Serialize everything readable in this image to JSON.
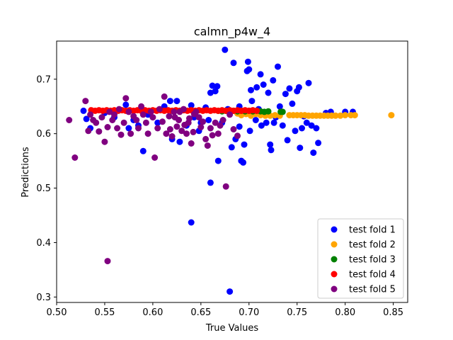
{
  "chart_data": {
    "type": "scatter",
    "title": "calmn_p4w_4",
    "xlabel": "True Values",
    "ylabel": "Predictions",
    "xlim": [
      0.5,
      0.865
    ],
    "ylim": [
      0.29,
      0.77
    ],
    "x_ticks": [
      "0.50",
      "0.55",
      "0.60",
      "0.65",
      "0.70",
      "0.75",
      "0.80",
      "0.85"
    ],
    "y_ticks": [
      "0.3",
      "0.4",
      "0.5",
      "0.6",
      "0.7"
    ],
    "grid": false,
    "legend_position": "bottom-right",
    "series": [
      {
        "name": "test fold 1",
        "color": "#0000ff",
        "points": [
          [
            0.528,
            0.642
          ],
          [
            0.531,
            0.627
          ],
          [
            0.535,
            0.61
          ],
          [
            0.55,
            0.638
          ],
          [
            0.56,
            0.63
          ],
          [
            0.572,
            0.653
          ],
          [
            0.575,
            0.61
          ],
          [
            0.58,
            0.625
          ],
          [
            0.585,
            0.615
          ],
          [
            0.59,
            0.568
          ],
          [
            0.595,
            0.635
          ],
          [
            0.605,
            0.62
          ],
          [
            0.612,
            0.65
          ],
          [
            0.618,
            0.66
          ],
          [
            0.62,
            0.59
          ],
          [
            0.625,
            0.66
          ],
          [
            0.628,
            0.585
          ],
          [
            0.635,
            0.615
          ],
          [
            0.64,
            0.652
          ],
          [
            0.643,
            0.63
          ],
          [
            0.648,
            0.605
          ],
          [
            0.65,
            0.62
          ],
          [
            0.655,
            0.648
          ],
          [
            0.658,
            0.625
          ],
          [
            0.66,
            0.675
          ],
          [
            0.662,
            0.688
          ],
          [
            0.665,
            0.678
          ],
          [
            0.667,
            0.687
          ],
          [
            0.668,
            0.55
          ],
          [
            0.672,
            0.62
          ],
          [
            0.675,
            0.754
          ],
          [
            0.678,
            0.645
          ],
          [
            0.68,
            0.64
          ],
          [
            0.682,
            0.575
          ],
          [
            0.684,
            0.73
          ],
          [
            0.686,
            0.59
          ],
          [
            0.69,
            0.65
          ],
          [
            0.692,
            0.55
          ],
          [
            0.694,
            0.547
          ],
          [
            0.697,
            0.64
          ],
          [
            0.698,
            0.715
          ],
          [
            0.699,
            0.732
          ],
          [
            0.7,
            0.718
          ],
          [
            0.701,
            0.605
          ],
          [
            0.702,
            0.68
          ],
          [
            0.703,
            0.66
          ],
          [
            0.705,
            0.64
          ],
          [
            0.707,
            0.625
          ],
          [
            0.708,
            0.685
          ],
          [
            0.71,
            0.645
          ],
          [
            0.712,
            0.709
          ],
          [
            0.713,
            0.615
          ],
          [
            0.715,
            0.69
          ],
          [
            0.718,
            0.62
          ],
          [
            0.72,
            0.675
          ],
          [
            0.722,
            0.58
          ],
          [
            0.723,
            0.57
          ],
          [
            0.725,
            0.698
          ],
          [
            0.726,
            0.62
          ],
          [
            0.728,
            0.63
          ],
          [
            0.73,
            0.723
          ],
          [
            0.732,
            0.65
          ],
          [
            0.735,
            0.615
          ],
          [
            0.738,
            0.673
          ],
          [
            0.74,
            0.588
          ],
          [
            0.742,
            0.683
          ],
          [
            0.745,
            0.655
          ],
          [
            0.748,
            0.605
          ],
          [
            0.75,
            0.678
          ],
          [
            0.752,
            0.685
          ],
          [
            0.753,
            0.574
          ],
          [
            0.755,
            0.61
          ],
          [
            0.757,
            0.632
          ],
          [
            0.76,
            0.62
          ],
          [
            0.762,
            0.693
          ],
          [
            0.765,
            0.615
          ],
          [
            0.767,
            0.565
          ],
          [
            0.77,
            0.61
          ],
          [
            0.772,
            0.583
          ],
          [
            0.78,
            0.638
          ],
          [
            0.785,
            0.64
          ],
          [
            0.8,
            0.64
          ],
          [
            0.808,
            0.64
          ],
          [
            0.66,
            0.51
          ],
          [
            0.64,
            0.437
          ],
          [
            0.68,
            0.31
          ],
          [
            0.69,
            0.613
          ],
          [
            0.695,
            0.58
          ]
        ]
      },
      {
        "name": "test fold 2",
        "color": "#ffa500",
        "points": [
          [
            0.688,
            0.637
          ],
          [
            0.692,
            0.634
          ],
          [
            0.697,
            0.636
          ],
          [
            0.702,
            0.633
          ],
          [
            0.707,
            0.636
          ],
          [
            0.712,
            0.634
          ],
          [
            0.717,
            0.633
          ],
          [
            0.722,
            0.633
          ],
          [
            0.727,
            0.634
          ],
          [
            0.732,
            0.633
          ],
          [
            0.742,
            0.634
          ],
          [
            0.746,
            0.634
          ],
          [
            0.75,
            0.634
          ],
          [
            0.754,
            0.634
          ],
          [
            0.758,
            0.634
          ],
          [
            0.762,
            0.633
          ],
          [
            0.766,
            0.633
          ],
          [
            0.77,
            0.633
          ],
          [
            0.774,
            0.633
          ],
          [
            0.778,
            0.633
          ],
          [
            0.782,
            0.633
          ],
          [
            0.786,
            0.633
          ],
          [
            0.79,
            0.633
          ],
          [
            0.795,
            0.633
          ],
          [
            0.8,
            0.634
          ],
          [
            0.806,
            0.634
          ],
          [
            0.81,
            0.634
          ],
          [
            0.848,
            0.634
          ]
        ]
      },
      {
        "name": "test fold 3",
        "color": "#008000",
        "points": [
          [
            0.668,
            0.642
          ],
          [
            0.672,
            0.641
          ],
          [
            0.676,
            0.642
          ],
          [
            0.68,
            0.641
          ],
          [
            0.684,
            0.642
          ],
          [
            0.688,
            0.641
          ],
          [
            0.692,
            0.642
          ],
          [
            0.696,
            0.641
          ],
          [
            0.7,
            0.642
          ],
          [
            0.704,
            0.641
          ],
          [
            0.708,
            0.642
          ],
          [
            0.712,
            0.641
          ],
          [
            0.716,
            0.64
          ],
          [
            0.72,
            0.641
          ],
          [
            0.733,
            0.64
          ],
          [
            0.735,
            0.64
          ]
        ]
      },
      {
        "name": "test fold 4",
        "color": "#ff0000",
        "points": [
          [
            0.536,
            0.643
          ],
          [
            0.54,
            0.642
          ],
          [
            0.544,
            0.643
          ],
          [
            0.548,
            0.642
          ],
          [
            0.552,
            0.643
          ],
          [
            0.556,
            0.642
          ],
          [
            0.56,
            0.643
          ],
          [
            0.564,
            0.642
          ],
          [
            0.568,
            0.643
          ],
          [
            0.572,
            0.642
          ],
          [
            0.576,
            0.643
          ],
          [
            0.58,
            0.642
          ],
          [
            0.584,
            0.643
          ],
          [
            0.588,
            0.642
          ],
          [
            0.592,
            0.643
          ],
          [
            0.596,
            0.642
          ],
          [
            0.6,
            0.643
          ],
          [
            0.604,
            0.642
          ],
          [
            0.608,
            0.643
          ],
          [
            0.612,
            0.642
          ],
          [
            0.616,
            0.643
          ],
          [
            0.62,
            0.642
          ],
          [
            0.624,
            0.643
          ],
          [
            0.628,
            0.642
          ],
          [
            0.632,
            0.643
          ],
          [
            0.636,
            0.642
          ],
          [
            0.64,
            0.643
          ],
          [
            0.644,
            0.642
          ],
          [
            0.648,
            0.643
          ],
          [
            0.652,
            0.642
          ],
          [
            0.656,
            0.643
          ],
          [
            0.66,
            0.642
          ],
          [
            0.664,
            0.643
          ],
          [
            0.668,
            0.642
          ],
          [
            0.672,
            0.643
          ],
          [
            0.676,
            0.642
          ],
          [
            0.68,
            0.643
          ],
          [
            0.684,
            0.642
          ],
          [
            0.688,
            0.643
          ],
          [
            0.692,
            0.642
          ],
          [
            0.696,
            0.643
          ],
          [
            0.7,
            0.642
          ],
          [
            0.704,
            0.643
          ],
          [
            0.708,
            0.642
          ]
        ]
      },
      {
        "name": "test fold 5",
        "color": "#800080",
        "points": [
          [
            0.513,
            0.625
          ],
          [
            0.519,
            0.556
          ],
          [
            0.53,
            0.66
          ],
          [
            0.533,
            0.605
          ],
          [
            0.535,
            0.635
          ],
          [
            0.538,
            0.625
          ],
          [
            0.541,
            0.62
          ],
          [
            0.544,
            0.604
          ],
          [
            0.547,
            0.63
          ],
          [
            0.55,
            0.585
          ],
          [
            0.553,
            0.612
          ],
          [
            0.555,
            0.64
          ],
          [
            0.558,
            0.625
          ],
          [
            0.56,
            0.635
          ],
          [
            0.563,
            0.61
          ],
          [
            0.565,
            0.645
          ],
          [
            0.567,
            0.598
          ],
          [
            0.57,
            0.62
          ],
          [
            0.572,
            0.665
          ],
          [
            0.575,
            0.64
          ],
          [
            0.577,
            0.6
          ],
          [
            0.58,
            0.632
          ],
          [
            0.583,
            0.625
          ],
          [
            0.585,
            0.61
          ],
          [
            0.588,
            0.65
          ],
          [
            0.59,
            0.635
          ],
          [
            0.593,
            0.62
          ],
          [
            0.595,
            0.6
          ],
          [
            0.598,
            0.64
          ],
          [
            0.6,
            0.63
          ],
          [
            0.602,
            0.556
          ],
          [
            0.605,
            0.61
          ],
          [
            0.607,
            0.645
          ],
          [
            0.61,
            0.622
          ],
          [
            0.612,
            0.668
          ],
          [
            0.614,
            0.6
          ],
          [
            0.617,
            0.632
          ],
          [
            0.62,
            0.595
          ],
          [
            0.622,
            0.64
          ],
          [
            0.625,
            0.613
          ],
          [
            0.627,
            0.625
          ],
          [
            0.63,
            0.605
          ],
          [
            0.632,
            0.645
          ],
          [
            0.635,
            0.6
          ],
          [
            0.637,
            0.62
          ],
          [
            0.64,
            0.582
          ],
          [
            0.642,
            0.603
          ],
          [
            0.645,
            0.64
          ],
          [
            0.648,
            0.63
          ],
          [
            0.65,
            0.612
          ],
          [
            0.652,
            0.622
          ],
          [
            0.655,
            0.59
          ],
          [
            0.657,
            0.578
          ],
          [
            0.66,
            0.61
          ],
          [
            0.662,
            0.597
          ],
          [
            0.665,
            0.62
          ],
          [
            0.668,
            0.6
          ],
          [
            0.67,
            0.615
          ],
          [
            0.673,
            0.625
          ],
          [
            0.676,
            0.503
          ],
          [
            0.68,
            0.635
          ],
          [
            0.684,
            0.608
          ],
          [
            0.688,
            0.596
          ],
          [
            0.553,
            0.366
          ],
          [
            0.623,
            0.63
          ],
          [
            0.628,
            0.64
          ],
          [
            0.633,
            0.616
          ],
          [
            0.638,
            0.628
          ],
          [
            0.643,
            0.636
          ],
          [
            0.618,
            0.608
          ]
        ]
      }
    ]
  }
}
